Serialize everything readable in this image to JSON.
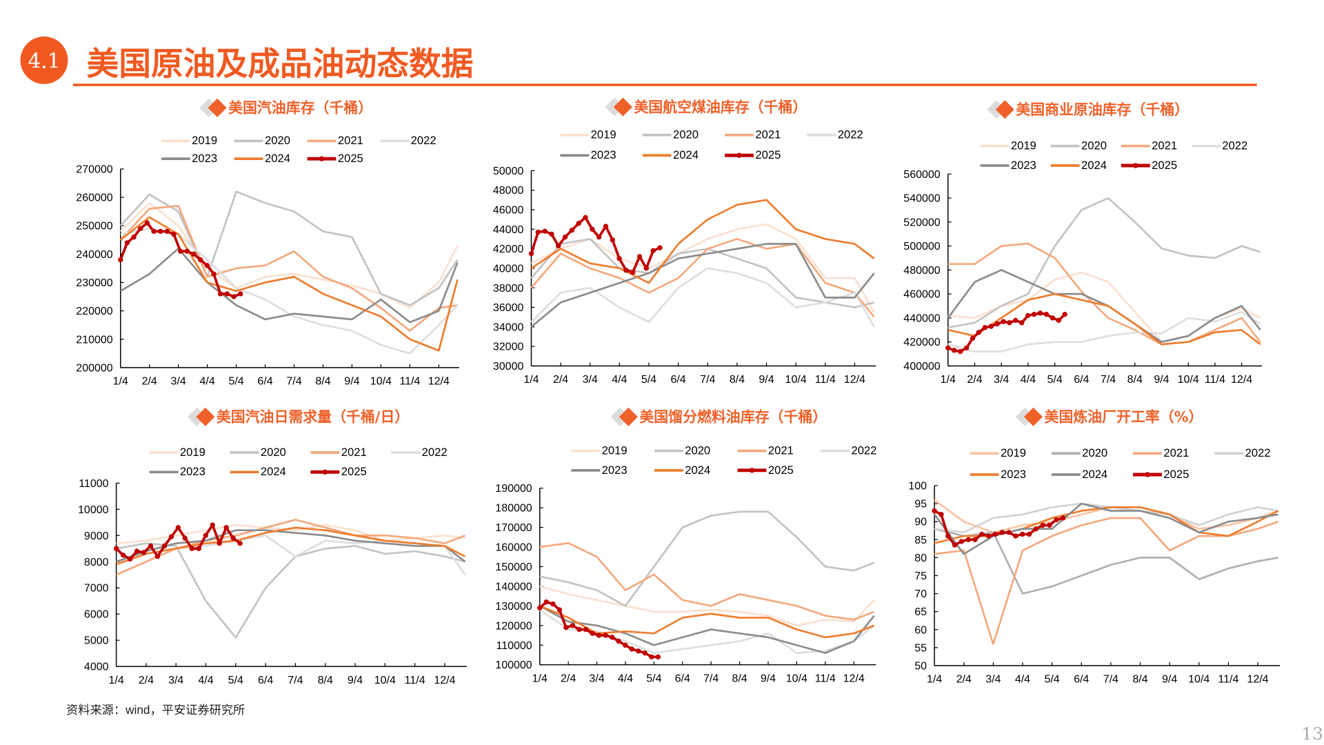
{
  "header": {
    "section_number": "4.1",
    "title": "美国原油及成品油动态数据",
    "accent_color": "#f05a22"
  },
  "footer": {
    "source": "资料来源：wind，平安证券研究所",
    "page_number": "13"
  },
  "x_tick_labels": [
    "1/4",
    "2/4",
    "3/4",
    "4/4",
    "5/4",
    "6/4",
    "7/4",
    "8/4",
    "9/4",
    "10/4",
    "11/4",
    "12/4"
  ],
  "chart_data": [
    {
      "type": "line",
      "title": "美国汽油库存（千桶）",
      "ylim": [
        200000,
        270000
      ],
      "yticks": [
        200000,
        210000,
        220000,
        230000,
        240000,
        250000,
        260000,
        270000
      ],
      "x_note": "monthly points at 1/4..12/4 and year end; 2025 weekly from 1/4",
      "series": [
        {
          "name": "2019",
          "color": "#fbe0cf",
          "values": [
            248000,
            258000,
            250000,
            235000,
            228000,
            232000,
            233000,
            231000,
            229000,
            226000,
            221000,
            230000,
            243000
          ]
        },
        {
          "name": "2020",
          "color": "#c3c3c3",
          "values": [
            250000,
            261000,
            255000,
            232000,
            262000,
            258000,
            255000,
            248000,
            246000,
            226000,
            222000,
            228000,
            238000
          ]
        },
        {
          "name": "2021",
          "color": "#f4a97e",
          "values": [
            245000,
            256000,
            257000,
            232000,
            235000,
            236000,
            241000,
            232000,
            228000,
            221000,
            213000,
            221000,
            222000
          ]
        },
        {
          "name": "2022",
          "color": "#dedede",
          "values": [
            247000,
            249000,
            247000,
            238000,
            228000,
            224000,
            218000,
            215000,
            213000,
            208000,
            205000,
            215000,
            222000
          ]
        },
        {
          "name": "2023",
          "color": "#8c8c8c",
          "values": [
            227000,
            233000,
            242000,
            230000,
            222000,
            217000,
            219000,
            218000,
            217000,
            224000,
            216000,
            220000,
            237000
          ]
        },
        {
          "name": "2024",
          "color": "#ee7d2e",
          "values": [
            245000,
            253000,
            247000,
            230000,
            227000,
            230000,
            232000,
            226000,
            222000,
            218000,
            210000,
            206000,
            231000
          ]
        },
        {
          "name": "2025",
          "color": "#c00000",
          "weekly": true,
          "values": [
            238000,
            244000,
            246000,
            249000,
            251000,
            248000,
            248000,
            248000,
            247000,
            241000,
            241000,
            240000,
            238000,
            236000,
            233000,
            226000,
            226000,
            225000,
            226000
          ]
        }
      ]
    },
    {
      "type": "line",
      "title": "美国航空煤油库存（千桶）",
      "ylim": [
        30000,
        50000
      ],
      "yticks": [
        30000,
        32000,
        34000,
        36000,
        38000,
        40000,
        42000,
        44000,
        46000,
        48000,
        50000
      ],
      "series": [
        {
          "name": "2019",
          "color": "#fbe0cf",
          "values": [
            40500,
            42000,
            43000,
            41000,
            40000,
            41500,
            43000,
            44000,
            44500,
            43000,
            39000,
            39000,
            35500
          ]
        },
        {
          "name": "2020",
          "color": "#c3c3c3",
          "values": [
            39000,
            42500,
            43000,
            40000,
            39500,
            41500,
            42000,
            41000,
            40000,
            37000,
            36500,
            36000,
            36500
          ]
        },
        {
          "name": "2021",
          "color": "#f4a97e",
          "values": [
            38000,
            41500,
            40000,
            39000,
            37500,
            39000,
            42000,
            43000,
            42000,
            42500,
            38500,
            37500,
            35000
          ]
        },
        {
          "name": "2022",
          "color": "#dedede",
          "values": [
            34500,
            37500,
            38000,
            36000,
            34500,
            38000,
            40000,
            39500,
            38500,
            36000,
            36500,
            37500,
            34000
          ]
        },
        {
          "name": "2023",
          "color": "#8c8c8c",
          "values": [
            34000,
            36500,
            37500,
            38500,
            39500,
            41000,
            41500,
            42000,
            42500,
            42500,
            37000,
            37000,
            39500
          ]
        },
        {
          "name": "2024",
          "color": "#ee7d2e",
          "values": [
            40000,
            42000,
            40500,
            40000,
            38500,
            42500,
            45000,
            46500,
            47000,
            44000,
            43000,
            42500,
            41000
          ]
        },
        {
          "name": "2025",
          "color": "#c00000",
          "weekly": true,
          "values": [
            41500,
            43700,
            43800,
            43500,
            42300,
            43200,
            43900,
            44600,
            45200,
            44000,
            43200,
            44300,
            42900,
            41000,
            39800,
            39600,
            41200,
            40000,
            41800,
            42100
          ]
        }
      ]
    },
    {
      "type": "line",
      "title": "美国商业原油库存（千桶）",
      "ylim": [
        400000,
        560000
      ],
      "yticks": [
        400000,
        420000,
        440000,
        460000,
        480000,
        500000,
        520000,
        540000,
        560000
      ],
      "series": [
        {
          "name": "2019",
          "color": "#fbe0cf",
          "values": [
            442000,
            440000,
            450000,
            455000,
            472000,
            478000,
            470000,
            445000,
            420000,
            425000,
            440000,
            448000,
            440000
          ]
        },
        {
          "name": "2020",
          "color": "#c3c3c3",
          "values": [
            432000,
            436000,
            450000,
            460000,
            500000,
            530000,
            540000,
            520000,
            498000,
            492000,
            490000,
            500000,
            495000
          ]
        },
        {
          "name": "2021",
          "color": "#f4a97e",
          "values": [
            485000,
            485000,
            500000,
            502000,
            490000,
            462000,
            440000,
            430000,
            418000,
            420000,
            430000,
            440000,
            420000
          ]
        },
        {
          "name": "2022",
          "color": "#dedede",
          "values": [
            418000,
            412000,
            412000,
            418000,
            420000,
            420000,
            425000,
            428000,
            427000,
            440000,
            437000,
            445000,
            435000
          ]
        },
        {
          "name": "2023",
          "color": "#8c8c8c",
          "values": [
            440000,
            470000,
            480000,
            470000,
            460000,
            460000,
            450000,
            435000,
            420000,
            425000,
            440000,
            450000,
            430000
          ]
        },
        {
          "name": "2024",
          "color": "#ee7d2e",
          "values": [
            430000,
            425000,
            440000,
            455000,
            460000,
            455000,
            450000,
            435000,
            418000,
            420000,
            428000,
            430000,
            418000
          ]
        },
        {
          "name": "2025",
          "color": "#c00000",
          "weekly": true,
          "values": [
            415000,
            413000,
            412000,
            415000,
            423000,
            428000,
            432000,
            433000,
            435000,
            437000,
            436000,
            438000,
            436000,
            442000,
            443000,
            444000,
            443000,
            440000,
            438000,
            443000
          ]
        }
      ]
    },
    {
      "type": "line",
      "title": "美国汽油日需求量（千桶/日）",
      "ylim": [
        4000,
        11000
      ],
      "yticks": [
        4000,
        5000,
        6000,
        7000,
        8000,
        9000,
        10000,
        11000
      ],
      "series": [
        {
          "name": "2019",
          "color": "#fbe0cf",
          "values": [
            8700,
            8800,
            9000,
            9200,
            9400,
            9300,
            9200,
            9400,
            9200,
            8800,
            8900,
            9000,
            8900
          ]
        },
        {
          "name": "2020",
          "color": "#c3c3c3",
          "values": [
            8500,
            8700,
            8600,
            6500,
            5100,
            7000,
            8200,
            8500,
            8600,
            8300,
            8400,
            8200,
            8000
          ]
        },
        {
          "name": "2021",
          "color": "#f4a97e",
          "values": [
            7500,
            8000,
            8500,
            8800,
            9000,
            9300,
            9600,
            9300,
            9000,
            9000,
            8900,
            8700,
            9000
          ]
        },
        {
          "name": "2022",
          "color": "#dedede",
          "values": [
            8000,
            8300,
            8500,
            8600,
            8800,
            9000,
            8200,
            8800,
            8700,
            8800,
            8700,
            8600,
            7500
          ]
        },
        {
          "name": "2023",
          "color": "#8c8c8c",
          "values": [
            8000,
            8400,
            8700,
            8800,
            9200,
            9200,
            9100,
            9000,
            8800,
            8700,
            8600,
            8600,
            8000
          ]
        },
        {
          "name": "2024",
          "color": "#ee7d2e",
          "values": [
            7900,
            8300,
            8500,
            8700,
            8800,
            9100,
            9300,
            9200,
            9000,
            8800,
            8700,
            8600,
            8200
          ]
        },
        {
          "name": "2025",
          "color": "#c00000",
          "weekly": true,
          "values": [
            8500,
            8250,
            8100,
            8400,
            8350,
            8600,
            8200,
            8600,
            8950,
            9300,
            8900,
            8500,
            8500,
            9000,
            9400,
            8700,
            9300,
            8900,
            8700
          ]
        }
      ]
    },
    {
      "type": "line",
      "title": "美国馏分燃料油库存（千桶）",
      "ylim": [
        100000,
        190000
      ],
      "yticks": [
        100000,
        110000,
        120000,
        130000,
        140000,
        150000,
        160000,
        170000,
        180000,
        190000
      ],
      "series": [
        {
          "name": "2019",
          "color": "#fbe0cf",
          "values": [
            140000,
            136000,
            133000,
            130000,
            127000,
            127000,
            128000,
            127000,
            125000,
            120000,
            123000,
            122000,
            133000
          ]
        },
        {
          "name": "2020",
          "color": "#c3c3c3",
          "values": [
            145000,
            142000,
            138000,
            130000,
            150000,
            170000,
            176000,
            178000,
            178000,
            165000,
            150000,
            148000,
            152000
          ]
        },
        {
          "name": "2021",
          "color": "#f4a97e",
          "values": [
            160000,
            162000,
            155000,
            138000,
            146000,
            133000,
            130000,
            136000,
            133000,
            130000,
            125000,
            123000,
            127000
          ]
        },
        {
          "name": "2022",
          "color": "#dedede",
          "values": [
            128000,
            118000,
            117000,
            112000,
            106000,
            108000,
            110000,
            112000,
            116000,
            106000,
            107000,
            112000,
            120000
          ]
        },
        {
          "name": "2023",
          "color": "#8c8c8c",
          "values": [
            130000,
            122000,
            120000,
            116000,
            110000,
            114000,
            118000,
            116000,
            114000,
            110000,
            106000,
            112000,
            125000
          ]
        },
        {
          "name": "2024",
          "color": "#ee7d2e",
          "values": [
            130000,
            124000,
            116000,
            117000,
            116000,
            124000,
            126000,
            124000,
            124000,
            118000,
            114000,
            116000,
            120000
          ]
        },
        {
          "name": "2025",
          "color": "#c00000",
          "weekly": true,
          "values": [
            129000,
            132000,
            131000,
            128000,
            119000,
            120000,
            118000,
            118000,
            116000,
            115000,
            115000,
            114000,
            112000,
            110000,
            108000,
            107000,
            106000,
            104000,
            104000
          ]
        }
      ]
    },
    {
      "type": "line",
      "title": "美国炼油厂开工率（%）",
      "ylim": [
        50,
        100
      ],
      "yticks": [
        50,
        55,
        60,
        65,
        70,
        75,
        80,
        85,
        90,
        95,
        100
      ],
      "series": [
        {
          "name": "2019",
          "color": "#f8c4a3",
          "values": [
            96,
            90,
            87,
            89,
            90,
            92,
            94,
            94,
            92,
            88,
            89,
            91,
            93
          ]
        },
        {
          "name": "2020",
          "color": "#b0b0b0",
          "values": [
            88,
            86,
            87,
            70,
            72,
            75,
            78,
            80,
            80,
            74,
            77,
            79,
            80
          ]
        },
        {
          "name": "2021",
          "color": "#f4a97e",
          "values": [
            81,
            82,
            56,
            82,
            86,
            89,
            91,
            91,
            82,
            86,
            86,
            88,
            90
          ]
        },
        {
          "name": "2022",
          "color": "#d2d2d2",
          "values": [
            88,
            87,
            91,
            92,
            94,
            95,
            94,
            93,
            92,
            89,
            92,
            94,
            93
          ]
        },
        {
          "name": "2023",
          "color": "#ee7d2e",
          "values": [
            84,
            86,
            86,
            88,
            91,
            93,
            94,
            94,
            92,
            87,
            86,
            90,
            93
          ]
        },
        {
          "name": "2024",
          "color": "#8c8c8c",
          "values": [
            92,
            81,
            86,
            88,
            88,
            95,
            93,
            93,
            91,
            87,
            90,
            91,
            92
          ]
        },
        {
          "name": "2025",
          "color": "#c00000",
          "weekly": true,
          "values": [
            93,
            92,
            86,
            83.5,
            84.5,
            85,
            85,
            86.5,
            86,
            86.5,
            87,
            87,
            86,
            86.5,
            86.5,
            88,
            89,
            89,
            90.5,
            91
          ]
        }
      ]
    }
  ]
}
